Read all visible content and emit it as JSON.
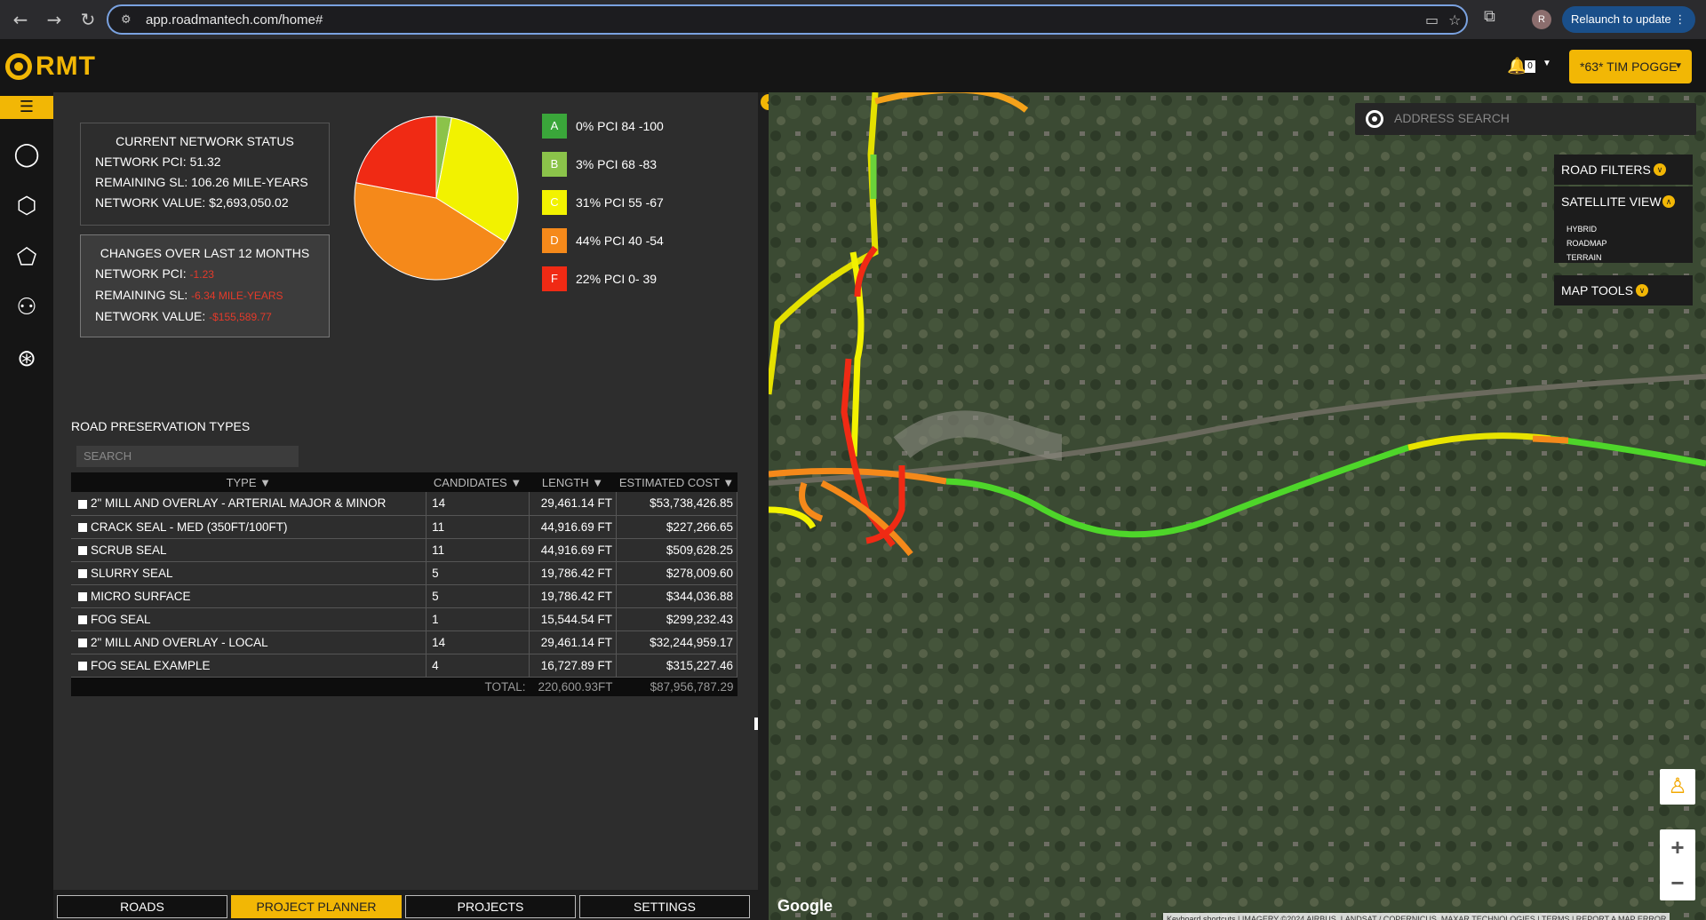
{
  "browser": {
    "url": "app.roadmantech.com/home#",
    "profile_initial": "R",
    "relaunch_label": "Relaunch to update"
  },
  "app": {
    "logo_text": "RMT",
    "notifications_count": "0",
    "user_label": "*63* TIM POGGE"
  },
  "network_status": {
    "title": "CURRENT NETWORK STATUS",
    "pci_label": "NETWORK PCI:",
    "pci_value": "51.32",
    "sl_label": "REMAINING SL:",
    "sl_value": "106.26 MILE-YEARS",
    "value_label": "NETWORK VALUE:",
    "value_value": "$2,693,050.02"
  },
  "changes": {
    "title": "CHANGES OVER LAST 12 MONTHS",
    "pci_label": "NETWORK PCI:",
    "pci_value": "-1.23",
    "sl_label": "REMAINING SL:",
    "sl_value": "-6.34 MILE-YEARS",
    "value_label": "NETWORK VALUE:",
    "value_value": "-$155,589.77"
  },
  "chart_data": {
    "type": "pie",
    "categories": [
      "A",
      "B",
      "C",
      "D",
      "F"
    ],
    "values": [
      0,
      3,
      31,
      44,
      22
    ],
    "labels": [
      "0% PCI 84 -100",
      "3% PCI 68 -83",
      "31% PCI 55 -67",
      "44% PCI 40 -54",
      "22% PCI 0- 39"
    ],
    "colors": [
      "#3aa63a",
      "#8bc34a",
      "#f2f200",
      "#f5891a",
      "#f02a14"
    ]
  },
  "preservation": {
    "title": "ROAD PRESERVATION TYPES",
    "search_placeholder": "SEARCH",
    "columns": [
      "TYPE",
      "CANDIDATES",
      "LENGTH",
      "ESTIMATED COST"
    ],
    "rows": [
      {
        "type": "2\" MILL AND OVERLAY - ARTERIAL MAJOR & MINOR",
        "candidates": "14",
        "length": "29,461.14 FT",
        "cost": "$53,738,426.85"
      },
      {
        "type": "CRACK SEAL - MED (350FT/100FT)",
        "candidates": "11",
        "length": "44,916.69 FT",
        "cost": "$227,266.65"
      },
      {
        "type": "SCRUB SEAL",
        "candidates": "11",
        "length": "44,916.69 FT",
        "cost": "$509,628.25"
      },
      {
        "type": "SLURRY SEAL",
        "candidates": "5",
        "length": "19,786.42 FT",
        "cost": "$278,009.60"
      },
      {
        "type": "MICRO SURFACE",
        "candidates": "5",
        "length": "19,786.42 FT",
        "cost": "$344,036.88"
      },
      {
        "type": "FOG SEAL",
        "candidates": "1",
        "length": "15,544.54 FT",
        "cost": "$299,232.43"
      },
      {
        "type": "2\" MILL AND OVERLAY - LOCAL",
        "candidates": "14",
        "length": "29,461.14 FT",
        "cost": "$32,244,959.17"
      },
      {
        "type": "FOG SEAL EXAMPLE",
        "candidates": "4",
        "length": "16,727.89 FT",
        "cost": "$315,227.46"
      }
    ],
    "total_label": "TOTAL:",
    "total_length": "220,600.93FT",
    "total_cost": "$87,956,787.29"
  },
  "tabs": [
    "ROADS",
    "PROJECT PLANNER",
    "PROJECTS",
    "SETTINGS"
  ],
  "map": {
    "address_placeholder": "ADDRESS SEARCH",
    "road_filters": "ROAD FILTERS",
    "satellite_view": "SATELLITE VIEW",
    "view_options": [
      "HYBRID",
      "ROADMAP",
      "TERRAIN"
    ],
    "map_tools": "MAP TOOLS",
    "google": "Google",
    "attribution": "Keyboard shortcuts | IMAGERY ©2024 AIRBUS, LANDSAT / COPERNICUS, MAXAR TECHNOLOGIES | TERMS | REPORT A MAP ERROR"
  }
}
